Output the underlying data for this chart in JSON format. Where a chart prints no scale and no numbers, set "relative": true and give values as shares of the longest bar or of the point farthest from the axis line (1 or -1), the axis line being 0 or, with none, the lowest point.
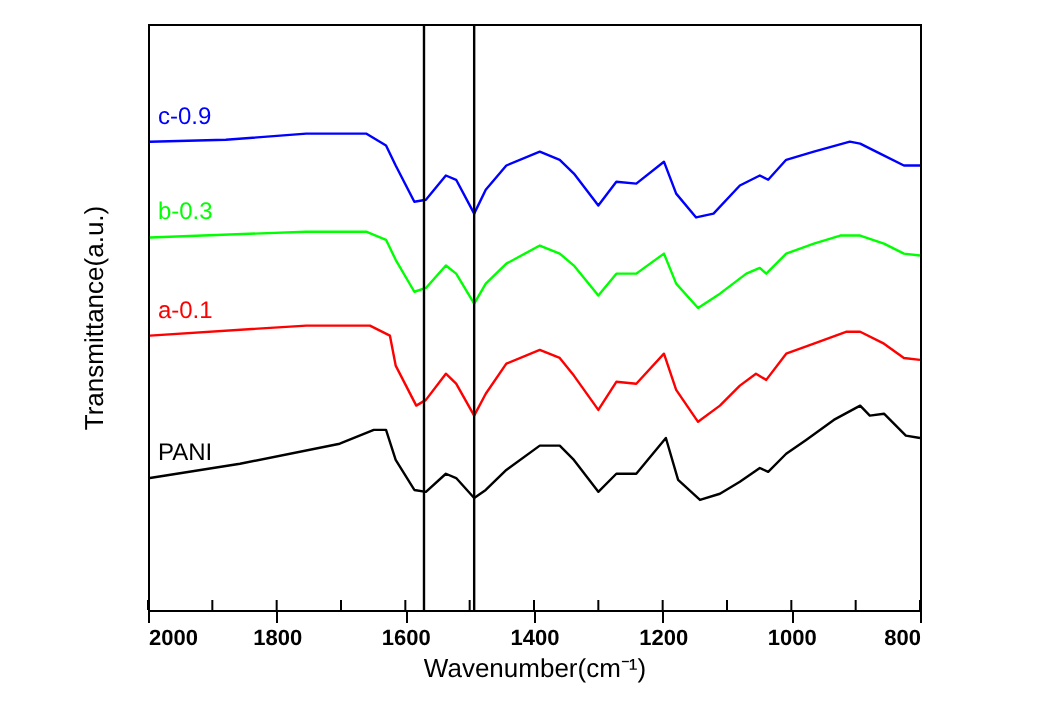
{
  "chart_data": {
    "type": "line",
    "relative": true,
    "xlabel": "Wavenumber(cm⁻¹)",
    "ylabel": "Transmittance(a.u.)",
    "xlim": [
      2000,
      800
    ],
    "xticks": [
      2000,
      {
        "value": 1900,
        "label": null
      },
      1800,
      {
        "value": 1700,
        "label": null
      },
      1600,
      {
        "value": 1500,
        "label": null
      },
      1400,
      {
        "value": 1300,
        "label": null
      },
      1200,
      {
        "value": 1100,
        "label": null
      },
      1000,
      {
        "value": 900,
        "label": null
      },
      800
    ],
    "grid": false,
    "marker": "none",
    "line_style": "solid",
    "ref_lines": [
      {
        "axis": "x",
        "value": 1571,
        "color": "#000000"
      },
      {
        "axis": "x",
        "value": 1493,
        "color": "#000000"
      }
    ],
    "series": [
      {
        "name": "c-0.9",
        "color": "#0000ff",
        "x": [
          1997,
          1879,
          1754,
          1661,
          1630,
          1615,
          1586,
          1568,
          1537,
          1521,
          1493,
          1475,
          1443,
          1391,
          1360,
          1338,
          1300,
          1272,
          1241,
          1198,
          1179,
          1148,
          1121,
          1080,
          1049,
          1036,
          1008,
          965,
          909,
          893,
          862,
          825,
          800
        ],
        "values": [
          0.983,
          0.987,
          1.0,
          1.0,
          0.975,
          0.933,
          0.857,
          0.861,
          0.912,
          0.903,
          0.832,
          0.882,
          0.933,
          0.962,
          0.945,
          0.916,
          0.849,
          0.899,
          0.895,
          0.941,
          0.874,
          0.824,
          0.832,
          0.891,
          0.912,
          0.903,
          0.945,
          0.962,
          0.983,
          0.979,
          0.958,
          0.933,
          0.933
        ]
      },
      {
        "name": "b-0.3",
        "color": "#00ff00",
        "x": [
          1997,
          1754,
          1661,
          1630,
          1615,
          1586,
          1568,
          1537,
          1521,
          1493,
          1475,
          1443,
          1391,
          1360,
          1338,
          1300,
          1272,
          1241,
          1198,
          1179,
          1145,
          1111,
          1070,
          1049,
          1039,
          1008,
          965,
          924,
          893,
          856,
          825,
          800
        ],
        "values": [
          0.782,
          0.794,
          0.794,
          0.777,
          0.735,
          0.668,
          0.676,
          0.723,
          0.706,
          0.643,
          0.685,
          0.727,
          0.765,
          0.748,
          0.723,
          0.66,
          0.706,
          0.706,
          0.748,
          0.685,
          0.634,
          0.664,
          0.706,
          0.718,
          0.706,
          0.748,
          0.769,
          0.786,
          0.786,
          0.769,
          0.748,
          0.744
        ]
      },
      {
        "name": "a-0.1",
        "color": "#ff0000",
        "x": [
          1997,
          1754,
          1655,
          1624,
          1615,
          1583,
          1568,
          1537,
          1521,
          1493,
          1475,
          1443,
          1391,
          1360,
          1338,
          1300,
          1272,
          1241,
          1198,
          1179,
          1145,
          1111,
          1080,
          1055,
          1039,
          1008,
          965,
          915,
          893,
          856,
          825,
          800
        ],
        "values": [
          0.576,
          0.597,
          0.597,
          0.576,
          0.513,
          0.429,
          0.441,
          0.496,
          0.475,
          0.408,
          0.454,
          0.517,
          0.546,
          0.529,
          0.492,
          0.42,
          0.479,
          0.475,
          0.538,
          0.462,
          0.395,
          0.429,
          0.471,
          0.496,
          0.483,
          0.538,
          0.559,
          0.584,
          0.584,
          0.559,
          0.529,
          0.525
        ]
      },
      {
        "name": "PANI",
        "color": "#000000",
        "x": [
          1997,
          1857,
          1702,
          1649,
          1630,
          1615,
          1586,
          1568,
          1537,
          1521,
          1493,
          1475,
          1443,
          1391,
          1360,
          1338,
          1300,
          1272,
          1241,
          1195,
          1176,
          1142,
          1111,
          1080,
          1049,
          1036,
          1008,
          977,
          934,
          893,
          878,
          856,
          822,
          800
        ],
        "values": [
          0.277,
          0.307,
          0.349,
          0.378,
          0.378,
          0.315,
          0.252,
          0.248,
          0.286,
          0.277,
          0.235,
          0.252,
          0.294,
          0.345,
          0.345,
          0.315,
          0.248,
          0.286,
          0.286,
          0.361,
          0.273,
          0.231,
          0.244,
          0.269,
          0.298,
          0.29,
          0.328,
          0.357,
          0.399,
          0.429,
          0.408,
          0.412,
          0.366,
          0.361
        ]
      }
    ]
  }
}
